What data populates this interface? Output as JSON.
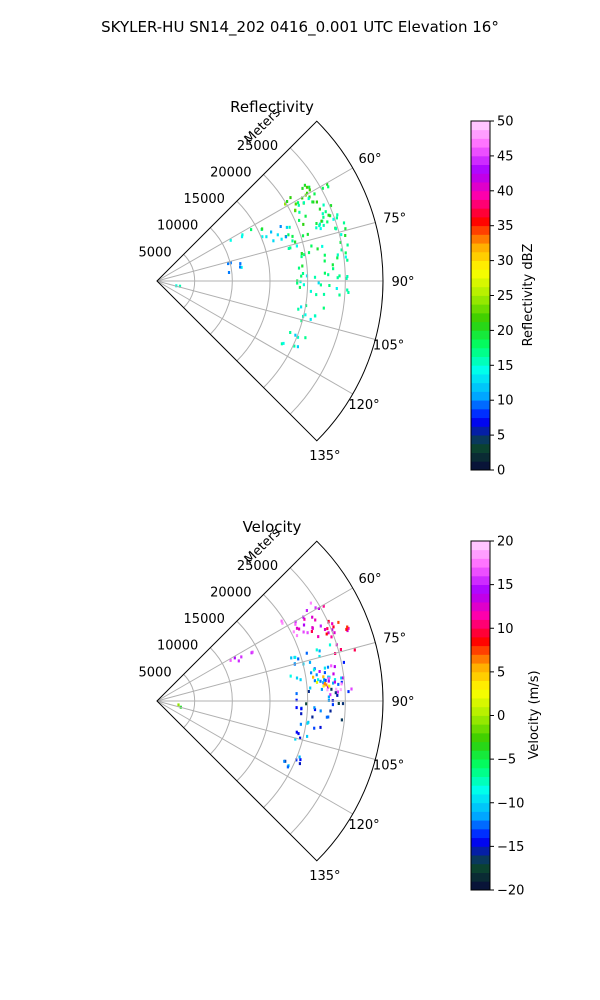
{
  "figure": {
    "title": "SKYLER-HU  SN14_202  0416_0.001 UTC Elevation 16°"
  },
  "chart_data": [
    {
      "type": "polar-sector",
      "title": "Reflectivity",
      "radial_axis_label": "Meters",
      "radial_ticks": [
        "5000",
        "10000",
        "15000",
        "20000",
        "25000"
      ],
      "r_max": 30000,
      "angular_range_deg": [
        45,
        135
      ],
      "angular_ticks": [
        "60°",
        "75°",
        "90°",
        "105°",
        "120°",
        "135°"
      ],
      "grid": true,
      "colorbar": {
        "label": "Reflectivity dBZ",
        "range": [
          0,
          50
        ],
        "ticks": [
          "0",
          "5",
          "10",
          "15",
          "20",
          "25",
          "30",
          "35",
          "40",
          "45",
          "50"
        ],
        "colormap": [
          "#08083a",
          "#0b4a2e",
          "#0000ff",
          "#00aaff",
          "#00ffee",
          "#00ff66",
          "#33cc00",
          "#aaee00",
          "#ffff00",
          "#ffaa00",
          "#ff0000",
          "#ff00aa",
          "#aa00ff",
          "#ff66ff",
          "#ffd9ff"
        ]
      },
      "echo_regions": [
        {
          "az": [
            57,
            66
          ],
          "r": [
            19500,
            24500
          ],
          "value": 22
        },
        {
          "az": [
            60,
            72
          ],
          "r": [
            20000,
            26000
          ],
          "value": 18
        },
        {
          "az": [
            61,
            64
          ],
          "r": [
            11000,
            16000
          ],
          "value": 17
        },
        {
          "az": [
            70,
            85
          ],
          "r": [
            18000,
            26000
          ],
          "value": 17
        },
        {
          "az": [
            85,
            95
          ],
          "r": [
            18500,
            25500
          ],
          "value": 16
        },
        {
          "az": [
            98,
            106
          ],
          "r": [
            19000,
            22500
          ],
          "value": 15
        },
        {
          "az": [
            110,
            117
          ],
          "r": [
            18500,
            21500
          ],
          "value": 14
        },
        {
          "az": [
            65,
            72
          ],
          "r": [
            15000,
            19000
          ],
          "value": 13
        },
        {
          "az": [
            76,
            84
          ],
          "r": [
            9500,
            11500
          ],
          "value": 12
        },
        {
          "az": [
            100,
            105
          ],
          "r": [
            2500,
            3500
          ],
          "value": 14
        }
      ]
    },
    {
      "type": "polar-sector",
      "title": "Velocity",
      "radial_axis_label": "Meters",
      "radial_ticks": [
        "5000",
        "10000",
        "15000",
        "20000",
        "25000"
      ],
      "r_max": 30000,
      "angular_range_deg": [
        45,
        135
      ],
      "angular_ticks": [
        "60°",
        "75°",
        "90°",
        "105°",
        "120°",
        "135°"
      ],
      "grid": true,
      "colorbar": {
        "label": "Velocity (m/s)",
        "range": [
          -20,
          20
        ],
        "ticks": [
          "−20",
          "−15",
          "−10",
          "−5",
          "0",
          "5",
          "10",
          "15",
          "20"
        ],
        "colormap": [
          "#08083a",
          "#0b4a2e",
          "#0000ff",
          "#00aaff",
          "#00ffee",
          "#00ff66",
          "#33cc00",
          "#aaee00",
          "#ffff00",
          "#ffaa00",
          "#ff0000",
          "#ff00aa",
          "#aa00ff",
          "#ff66ff",
          "#ffd9ff"
        ]
      },
      "echo_regions": [
        {
          "az": [
            57,
            66
          ],
          "r": [
            19500,
            24500
          ],
          "value": 15
        },
        {
          "az": [
            60,
            70
          ],
          "r": [
            22000,
            26000
          ],
          "value": 11
        },
        {
          "az": [
            66,
            76
          ],
          "r": [
            24000,
            27500
          ],
          "value": 10
        },
        {
          "az": [
            61,
            64
          ],
          "r": [
            11000,
            16000
          ],
          "value": 16
        },
        {
          "az": [
            72,
            86
          ],
          "r": [
            18000,
            25500
          ],
          "value": -11
        },
        {
          "az": [
            78,
            88
          ],
          "r": [
            21500,
            26000
          ],
          "value": 16
        },
        {
          "az": [
            86,
            96
          ],
          "r": [
            18500,
            25500
          ],
          "value": -14
        },
        {
          "az": [
            98,
            106
          ],
          "r": [
            19000,
            22500
          ],
          "value": -12
        },
        {
          "az": [
            110,
            117
          ],
          "r": [
            18500,
            21500
          ],
          "value": -13
        },
        {
          "az": [
            80,
            88
          ],
          "r": [
            20500,
            23000
          ],
          "value": 5
        },
        {
          "az": [
            100,
            105
          ],
          "r": [
            2500,
            3500
          ],
          "value": -3
        }
      ]
    }
  ]
}
